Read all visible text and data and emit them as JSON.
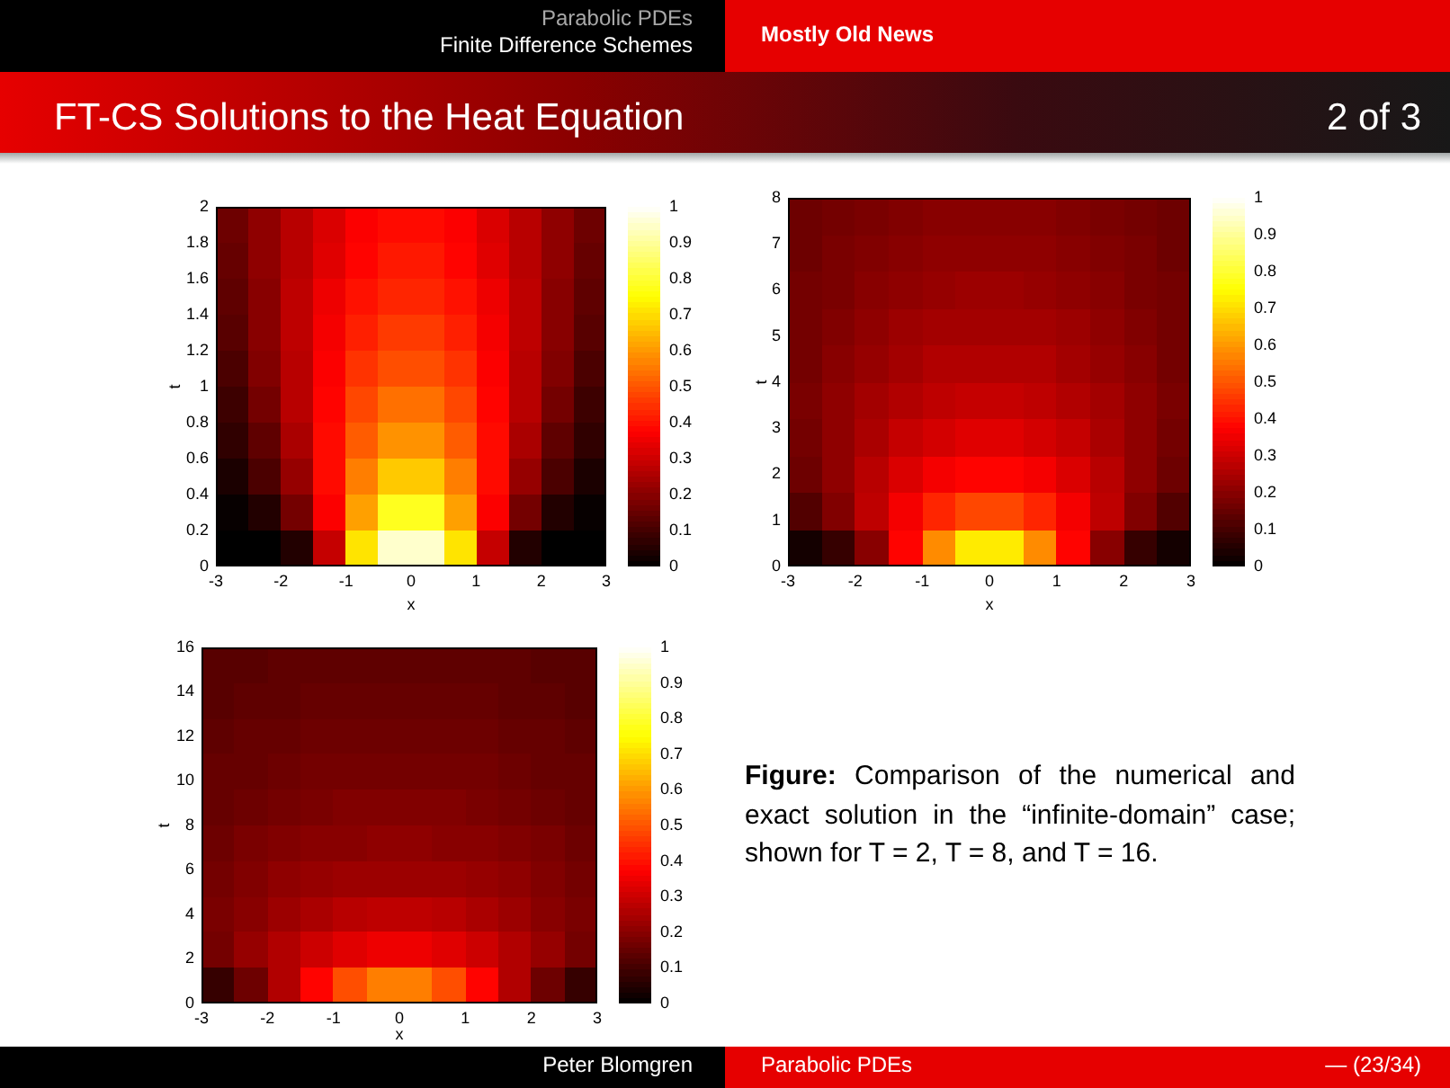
{
  "chart_data": [
    {
      "type": "heatmap",
      "xlabel": "x",
      "ylabel": "t",
      "x": [
        -2.75,
        -2.25,
        -1.75,
        -1.25,
        -0.75,
        -0.25,
        0.25,
        0.75,
        1.25,
        1.75,
        2.25,
        2.75
      ],
      "y": [
        1.9,
        1.7,
        1.5,
        1.3,
        1.1,
        0.9,
        0.7,
        0.5,
        0.3,
        0.1
      ],
      "cells": [
        [
          0.16,
          0.21,
          0.27,
          0.32,
          0.37,
          0.39,
          0.39,
          0.37,
          0.32,
          0.27,
          0.21,
          0.16
        ],
        [
          0.15,
          0.21,
          0.27,
          0.33,
          0.38,
          0.41,
          0.41,
          0.38,
          0.33,
          0.27,
          0.21,
          0.15
        ],
        [
          0.14,
          0.2,
          0.28,
          0.35,
          0.4,
          0.43,
          0.43,
          0.4,
          0.35,
          0.28,
          0.2,
          0.14
        ],
        [
          0.13,
          0.2,
          0.28,
          0.36,
          0.42,
          0.46,
          0.46,
          0.42,
          0.36,
          0.28,
          0.2,
          0.13
        ],
        [
          0.11,
          0.19,
          0.27,
          0.37,
          0.45,
          0.49,
          0.49,
          0.45,
          0.37,
          0.27,
          0.19,
          0.11
        ],
        [
          0.09,
          0.17,
          0.27,
          0.38,
          0.48,
          0.54,
          0.54,
          0.48,
          0.38,
          0.27,
          0.17,
          0.09
        ],
        [
          0.07,
          0.14,
          0.25,
          0.39,
          0.51,
          0.59,
          0.59,
          0.51,
          0.39,
          0.25,
          0.14,
          0.07
        ],
        [
          0.04,
          0.11,
          0.22,
          0.39,
          0.56,
          0.67,
          0.67,
          0.56,
          0.39,
          0.22,
          0.11,
          0.04
        ],
        [
          0.01,
          0.05,
          0.17,
          0.37,
          0.61,
          0.78,
          0.78,
          0.61,
          0.37,
          0.17,
          0.05,
          0.01
        ],
        [
          0,
          0,
          0.05,
          0.29,
          0.71,
          0.95,
          0.95,
          0.71,
          0.29,
          0.05,
          0,
          0
        ]
      ],
      "clim": [
        0,
        1
      ],
      "cticks": [
        0,
        0.1,
        0.2,
        0.3,
        0.4,
        0.5,
        0.6,
        0.7,
        0.8,
        0.9,
        1
      ],
      "xlim": [
        -3,
        3
      ],
      "xticks": [
        -3,
        -2,
        -1,
        0,
        1,
        2,
        3
      ],
      "ylim": [
        0,
        2
      ],
      "yticks": [
        0,
        0.2,
        0.4,
        0.6,
        0.8,
        1,
        1.2,
        1.4,
        1.6,
        1.8,
        2
      ]
    },
    {
      "type": "heatmap",
      "xlabel": "x",
      "ylabel": "t",
      "x": [
        -2.75,
        -2.25,
        -1.75,
        -1.25,
        -0.75,
        -0.25,
        0.25,
        0.75,
        1.25,
        1.75,
        2.25,
        2.75
      ],
      "y": [
        7.6,
        6.8,
        6,
        5.2,
        4.4,
        3.6,
        2.8,
        2,
        1.2,
        0.4
      ],
      "cells": [
        [
          0.16,
          0.17,
          0.18,
          0.19,
          0.2,
          0.2,
          0.2,
          0.2,
          0.19,
          0.18,
          0.17,
          0.16
        ],
        [
          0.16,
          0.18,
          0.19,
          0.2,
          0.21,
          0.21,
          0.21,
          0.21,
          0.2,
          0.19,
          0.18,
          0.16
        ],
        [
          0.17,
          0.18,
          0.2,
          0.21,
          0.22,
          0.23,
          0.23,
          0.22,
          0.21,
          0.2,
          0.18,
          0.17
        ],
        [
          0.17,
          0.19,
          0.21,
          0.23,
          0.24,
          0.24,
          0.24,
          0.24,
          0.23,
          0.21,
          0.19,
          0.17
        ],
        [
          0.17,
          0.2,
          0.22,
          0.24,
          0.26,
          0.26,
          0.26,
          0.26,
          0.24,
          0.22,
          0.2,
          0.17
        ],
        [
          0.18,
          0.21,
          0.24,
          0.26,
          0.28,
          0.29,
          0.29,
          0.28,
          0.26,
          0.24,
          0.21,
          0.18
        ],
        [
          0.17,
          0.21,
          0.25,
          0.29,
          0.31,
          0.33,
          0.33,
          0.31,
          0.29,
          0.25,
          0.21,
          0.17
        ],
        [
          0.16,
          0.21,
          0.27,
          0.32,
          0.36,
          0.38,
          0.38,
          0.36,
          0.32,
          0.27,
          0.21,
          0.16
        ],
        [
          0.12,
          0.19,
          0.28,
          0.36,
          0.43,
          0.48,
          0.48,
          0.43,
          0.36,
          0.28,
          0.19,
          0.12
        ],
        [
          0.03,
          0.08,
          0.2,
          0.38,
          0.58,
          0.72,
          0.72,
          0.58,
          0.38,
          0.2,
          0.08,
          0.03
        ]
      ],
      "clim": [
        0,
        1
      ],
      "cticks": [
        0,
        0.1,
        0.2,
        0.3,
        0.4,
        0.5,
        0.6,
        0.7,
        0.8,
        0.9,
        1
      ],
      "xlim": [
        -3,
        3
      ],
      "xticks": [
        -3,
        -2,
        -1,
        0,
        1,
        2,
        3
      ],
      "ylim": [
        0,
        8
      ],
      "yticks": [
        0,
        1,
        2,
        3,
        4,
        5,
        6,
        7,
        8
      ]
    },
    {
      "type": "heatmap",
      "xlabel": "x",
      "ylabel": "t",
      "x": [
        -2.75,
        -2.25,
        -1.75,
        -1.25,
        -0.75,
        -0.25,
        0.25,
        0.75,
        1.25,
        1.75,
        2.25,
        2.75
      ],
      "y": [
        15.2,
        13.6,
        12,
        10.4,
        8.8,
        7.2,
        5.6,
        4,
        2.4,
        0.8
      ],
      "cells": [
        [
          0.13,
          0.13,
          0.14,
          0.14,
          0.14,
          0.14,
          0.14,
          0.14,
          0.14,
          0.14,
          0.13,
          0.13
        ],
        [
          0.13,
          0.14,
          0.14,
          0.15,
          0.15,
          0.15,
          0.15,
          0.15,
          0.15,
          0.14,
          0.14,
          0.13
        ],
        [
          0.14,
          0.15,
          0.15,
          0.16,
          0.16,
          0.16,
          0.16,
          0.16,
          0.16,
          0.15,
          0.15,
          0.14
        ],
        [
          0.15,
          0.15,
          0.16,
          0.17,
          0.17,
          0.17,
          0.17,
          0.17,
          0.17,
          0.16,
          0.15,
          0.15
        ],
        [
          0.15,
          0.16,
          0.17,
          0.18,
          0.19,
          0.19,
          0.19,
          0.19,
          0.18,
          0.17,
          0.16,
          0.15
        ],
        [
          0.16,
          0.18,
          0.19,
          0.2,
          0.2,
          0.21,
          0.21,
          0.2,
          0.2,
          0.19,
          0.18,
          0.16
        ],
        [
          0.17,
          0.19,
          0.21,
          0.22,
          0.23,
          0.23,
          0.23,
          0.23,
          0.22,
          0.21,
          0.19,
          0.17
        ],
        [
          0.18,
          0.2,
          0.23,
          0.25,
          0.27,
          0.28,
          0.28,
          0.27,
          0.25,
          0.23,
          0.2,
          0.18
        ],
        [
          0.17,
          0.22,
          0.26,
          0.3,
          0.33,
          0.35,
          0.35,
          0.33,
          0.3,
          0.26,
          0.22,
          0.17
        ],
        [
          0.08,
          0.16,
          0.26,
          0.38,
          0.49,
          0.56,
          0.56,
          0.49,
          0.38,
          0.26,
          0.16,
          0.08
        ]
      ],
      "clim": [
        0,
        1
      ],
      "cticks": [
        0,
        0.1,
        0.2,
        0.3,
        0.4,
        0.5,
        0.6,
        0.7,
        0.8,
        0.9,
        1
      ],
      "xlim": [
        -3,
        3
      ],
      "xticks": [
        -3,
        -2,
        -1,
        0,
        1,
        2,
        3
      ],
      "ylim": [
        0,
        16
      ],
      "yticks": [
        0,
        2,
        4,
        6,
        8,
        10,
        12,
        14,
        16
      ]
    },
    {
      "type": "other",
      "title": "FT-CS Solutions to the Heat Equation",
      "annotations": [
        "Parabolic PDEs",
        "Finite Difference Schemes",
        "Mostly Old News",
        "2 of 3",
        "Figure: Comparison of the numerical and exact solution in the “infinite-domain” case; shown for T = 2, T = 8, and T = 16.",
        "Peter Blomgren",
        "Parabolic PDEs",
        "— (23/34)"
      ]
    }
  ]
}
